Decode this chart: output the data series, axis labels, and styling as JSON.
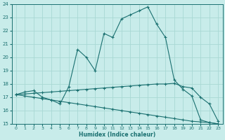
{
  "xlabel": "Humidex (Indice chaleur)",
  "xlim": [
    -0.5,
    23.5
  ],
  "ylim": [
    15,
    24
  ],
  "yticks": [
    15,
    16,
    17,
    18,
    19,
    20,
    21,
    22,
    23,
    24
  ],
  "xticks": [
    0,
    1,
    2,
    3,
    4,
    5,
    6,
    7,
    8,
    9,
    10,
    11,
    12,
    13,
    14,
    15,
    16,
    17,
    18,
    19,
    20,
    21,
    22,
    23
  ],
  "bg_color": "#c8ecea",
  "grid_color": "#a8d8d4",
  "line_color": "#1a7070",
  "line1_x": [
    0,
    1,
    2,
    3,
    4,
    5,
    6,
    7,
    8,
    9,
    10,
    11,
    12,
    13,
    14,
    15,
    16,
    17,
    18,
    19,
    20,
    21,
    22,
    23
  ],
  "line1_y": [
    17.2,
    17.4,
    17.5,
    17.0,
    16.8,
    16.5,
    17.8,
    20.6,
    20.0,
    19.0,
    21.8,
    21.5,
    22.9,
    23.2,
    23.5,
    23.8,
    22.5,
    21.5,
    18.3,
    17.6,
    17.1,
    15.3,
    15.1,
    15.0
  ],
  "line2_x": [
    0,
    1,
    2,
    3,
    4,
    5,
    6,
    7,
    8,
    9,
    10,
    11,
    12,
    13,
    14,
    15,
    16,
    17,
    18,
    19,
    20,
    21,
    22,
    23
  ],
  "line2_y": [
    17.2,
    17.25,
    17.3,
    17.35,
    17.4,
    17.45,
    17.5,
    17.55,
    17.6,
    17.65,
    17.7,
    17.75,
    17.8,
    17.85,
    17.9,
    17.95,
    18.0,
    18.0,
    18.05,
    17.8,
    17.7,
    17.0,
    16.5,
    15.2
  ],
  "line3_x": [
    0,
    1,
    2,
    3,
    4,
    5,
    6,
    7,
    8,
    9,
    10,
    11,
    12,
    13,
    14,
    15,
    16,
    17,
    18,
    19,
    20,
    21,
    22,
    23
  ],
  "line3_y": [
    17.2,
    17.1,
    17.0,
    16.9,
    16.8,
    16.7,
    16.6,
    16.5,
    16.4,
    16.3,
    16.2,
    16.1,
    16.0,
    15.9,
    15.8,
    15.7,
    15.6,
    15.5,
    15.4,
    15.3,
    15.2,
    15.15,
    15.1,
    15.0
  ]
}
